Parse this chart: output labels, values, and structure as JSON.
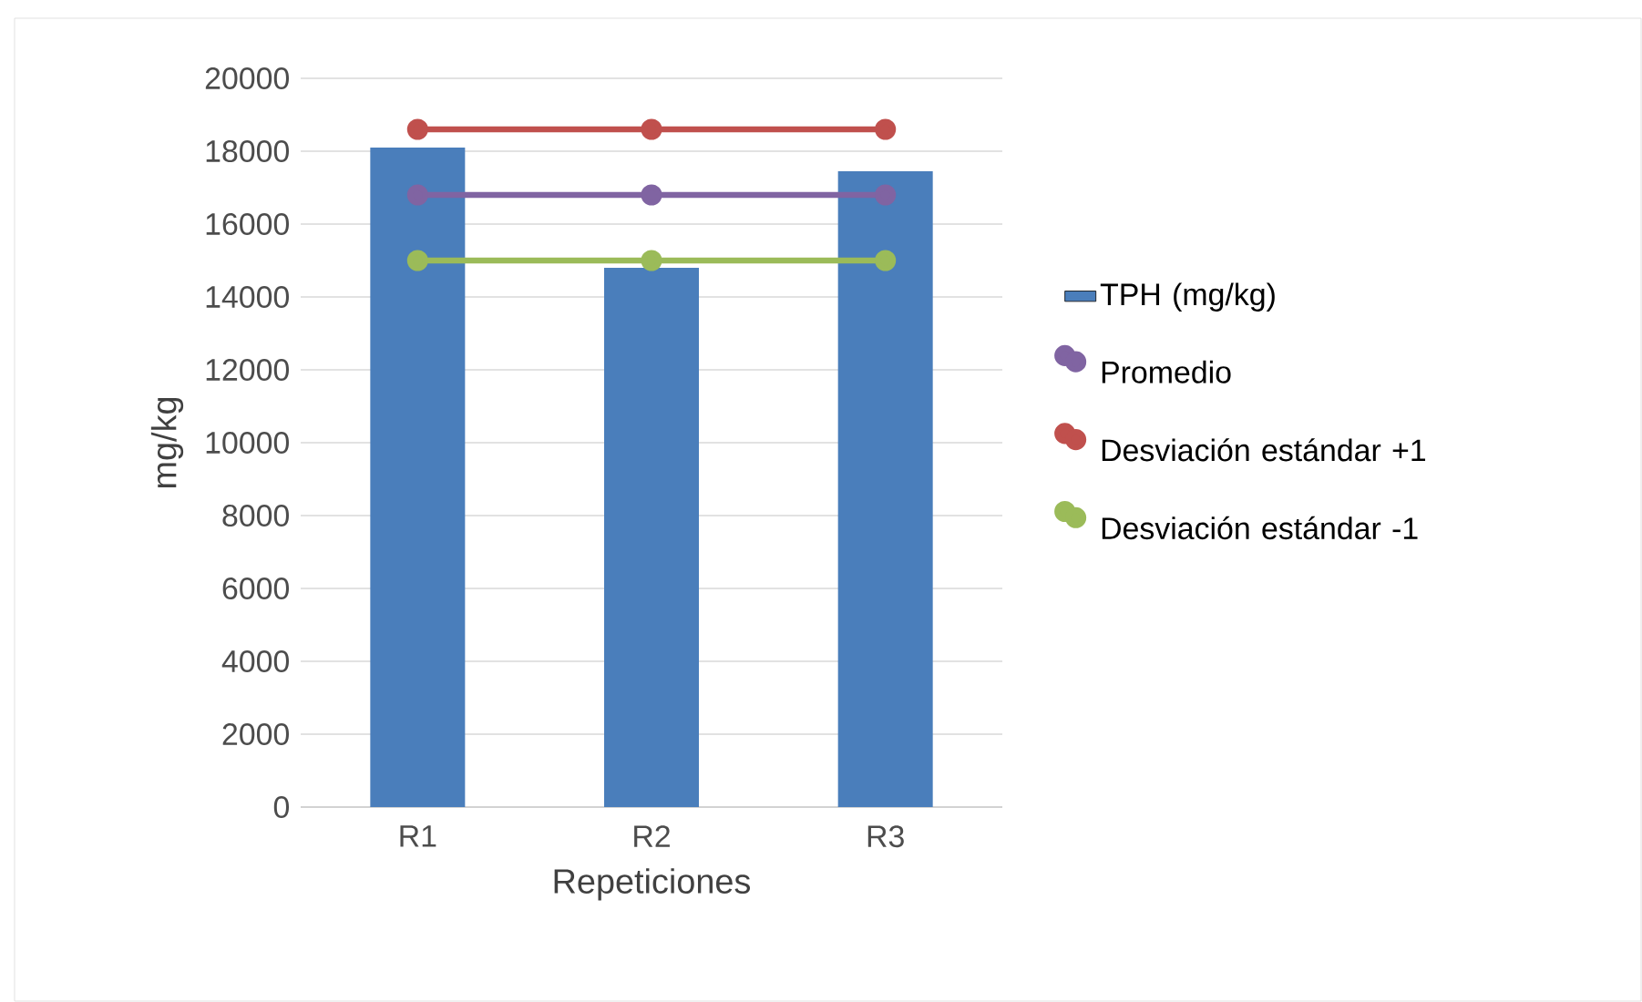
{
  "chart_data": {
    "type": "bar",
    "xlabel": "Repeticiones",
    "ylabel": "mg/kg",
    "categories": [
      "R1",
      "R2",
      "R3"
    ],
    "series": [
      {
        "name": "TPH (mg/kg)",
        "type": "bar",
        "color": "#4a7ebb",
        "values": [
          18100,
          14800,
          17450
        ]
      },
      {
        "name": "Promedio",
        "type": "line",
        "color": "#8064a2",
        "values": [
          16800,
          16800,
          16800
        ]
      },
      {
        "name": "Desviación estándar +1",
        "type": "line",
        "color": "#c0504d",
        "values": [
          18600,
          18600,
          18600
        ]
      },
      {
        "name": "Desviación estándar -1",
        "type": "line",
        "color": "#9bbb59",
        "values": [
          15000,
          15000,
          15000
        ]
      }
    ],
    "ylim": [
      0,
      20000
    ],
    "yticks": [
      0,
      2000,
      4000,
      6000,
      8000,
      10000,
      12000,
      14000,
      16000,
      18000,
      20000
    ],
    "grid": "y",
    "legend": "right",
    "marker": "circle"
  }
}
